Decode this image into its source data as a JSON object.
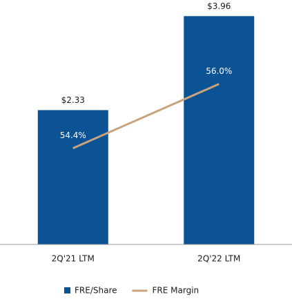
{
  "chart_data": {
    "type": "bar",
    "categories": [
      "2Q'21 LTM",
      "2Q'22 LTM"
    ],
    "series": [
      {
        "name": "FRE/Share",
        "type": "bar",
        "color": "#0b5394",
        "values": [
          2.33,
          3.96
        ],
        "value_labels": [
          "$2.33",
          "$3.96"
        ]
      },
      {
        "name": "FRE Margin",
        "type": "line",
        "axis": "y2",
        "color": "#c9a27e",
        "values": [
          54.4,
          56.0
        ],
        "value_labels": [
          "54.4%",
          "56.0%"
        ]
      }
    ],
    "ylim": [
      0,
      4
    ],
    "y2lim": [
      52,
      57.75
    ],
    "legend": "bottom"
  }
}
